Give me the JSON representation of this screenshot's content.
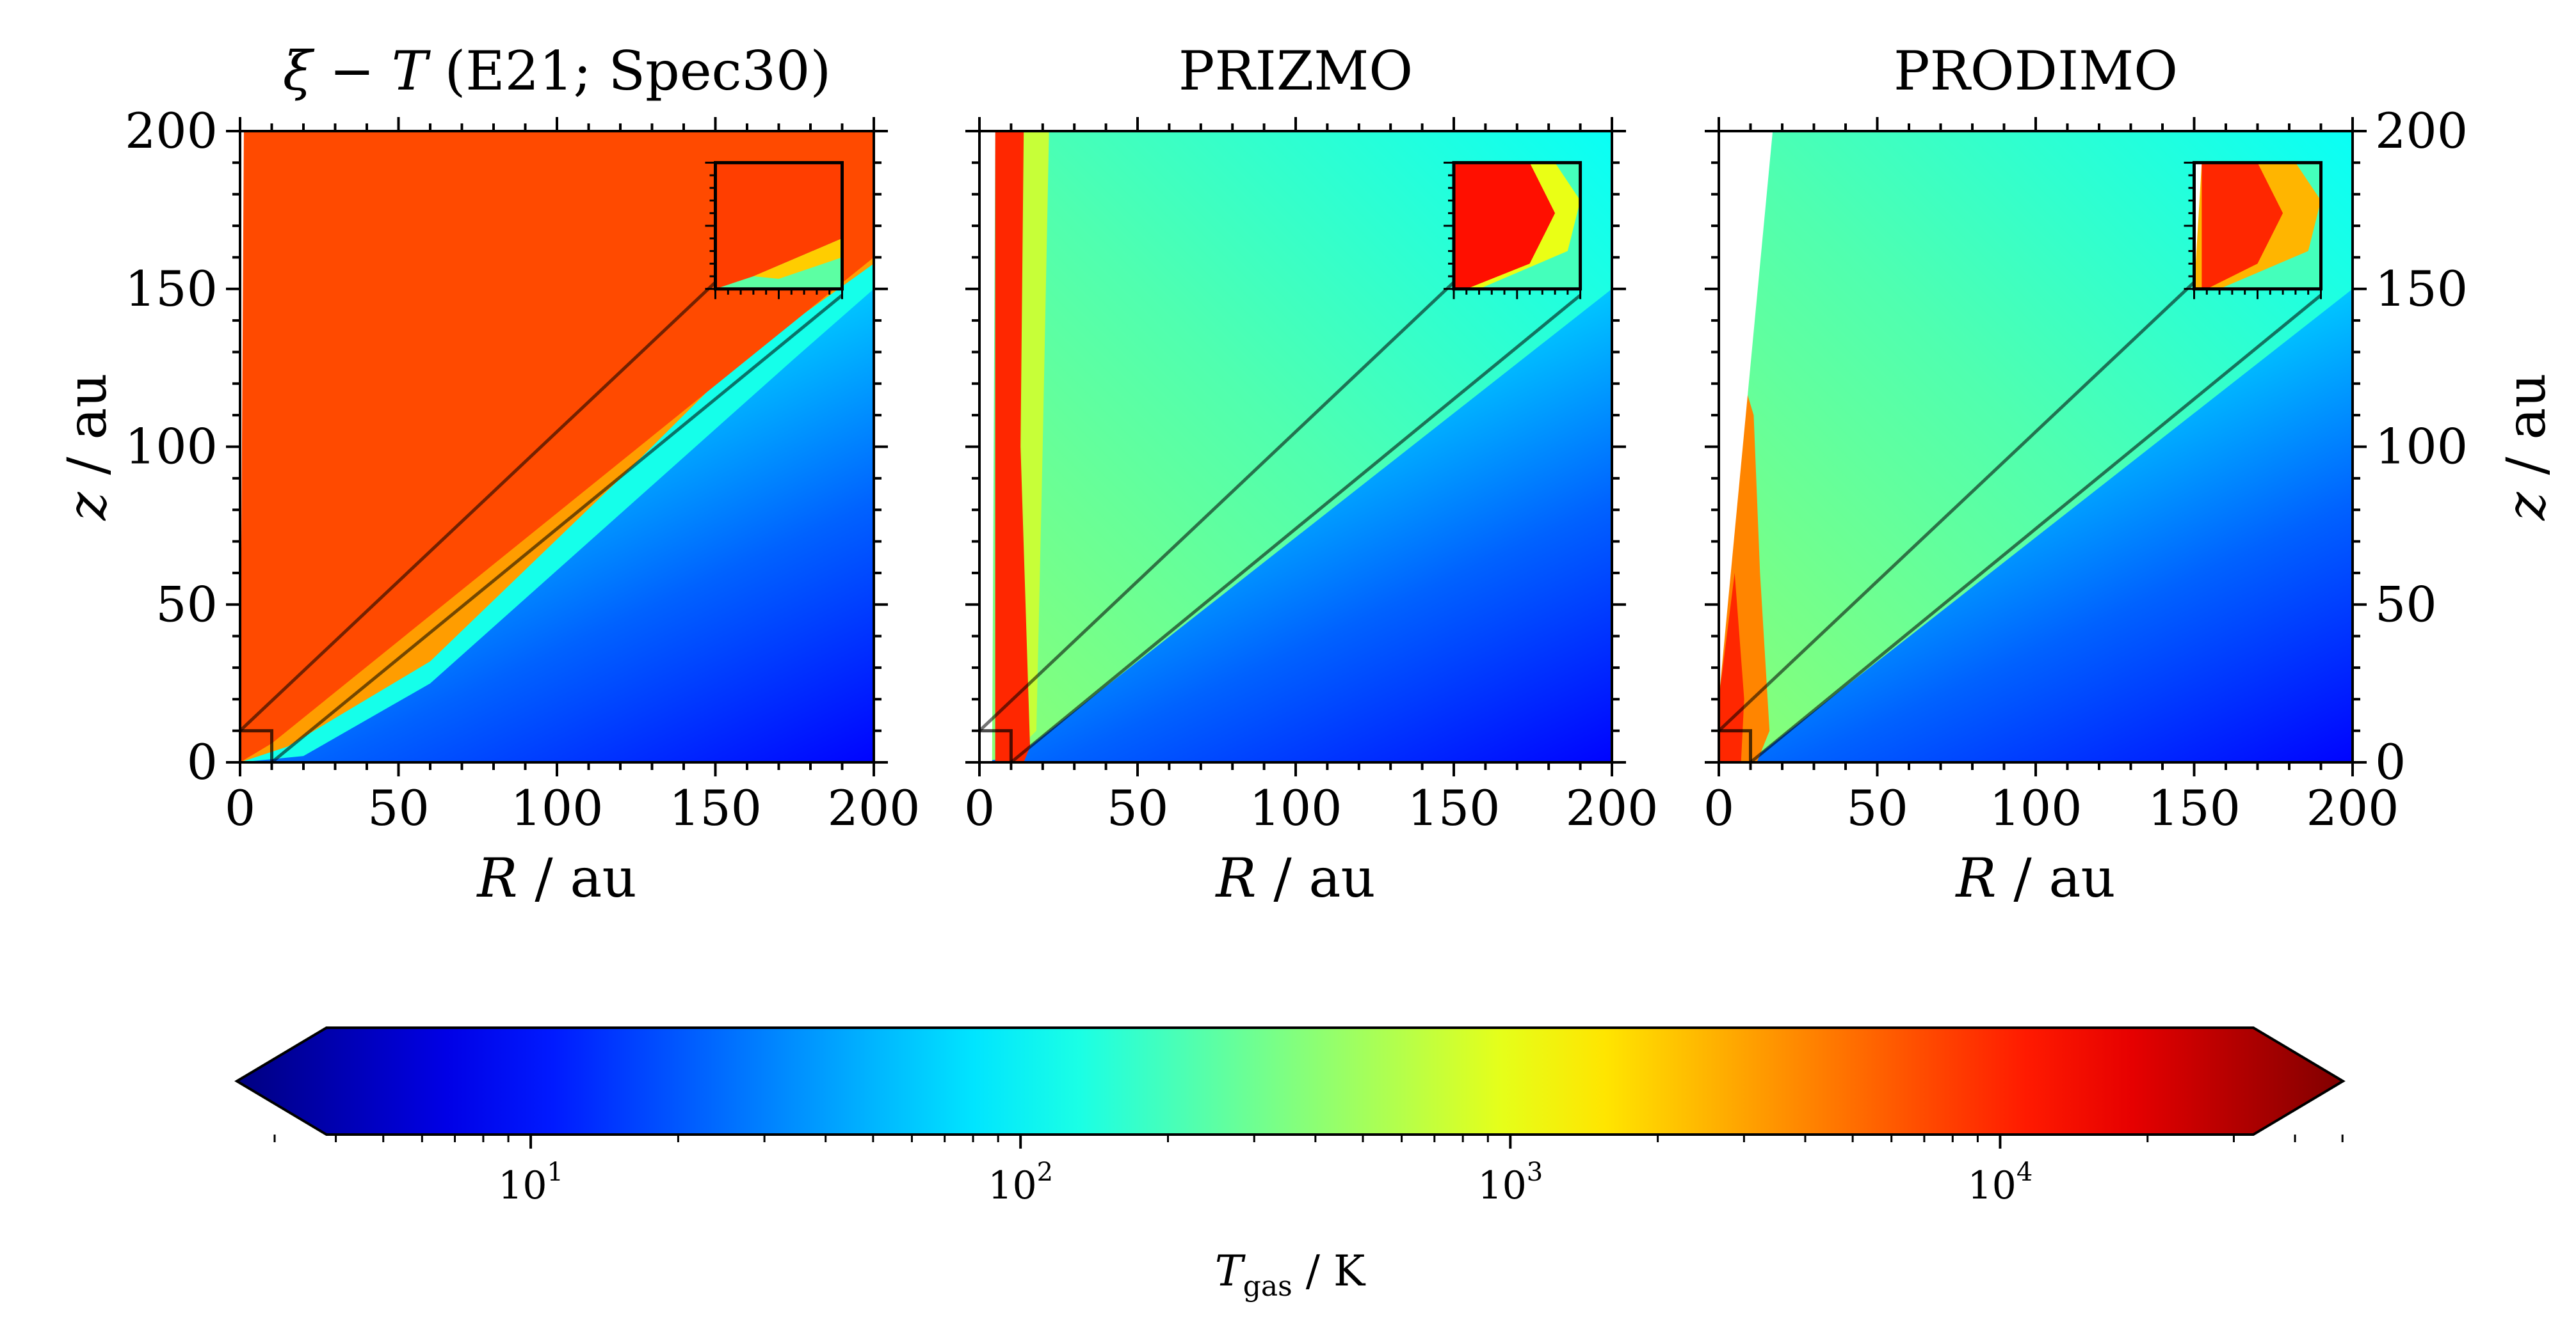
{
  "chart_data": {
    "type": "heatmap",
    "panels": [
      {
        "id": "xiT",
        "title_greek": "ξ",
        "title_minus": " − ",
        "title_var": "T",
        "title_rest": " (E21; Spec30)",
        "xlabel_var": "R",
        "xlabel_unit": " / au",
        "ylabel_var": "z",
        "ylabel_unit": " / au",
        "ylabel_side": "left",
        "xlim": [
          0,
          200
        ],
        "ylim": [
          0,
          200
        ],
        "xticks": [
          "0",
          "50",
          "100",
          "150",
          "200"
        ],
        "yticks": [
          "0",
          "50",
          "100",
          "150",
          "200"
        ],
        "hot_boundary_slope": 0.8,
        "hot_log10T": 3.85,
        "inset_zoom_box_au": [
          0,
          0,
          10,
          10
        ],
        "inset_location": "top-right"
      },
      {
        "id": "prizmo",
        "title": "PRIZMO",
        "xlabel_var": "R",
        "xlabel_unit": " / au",
        "xlim": [
          0,
          200
        ],
        "ylim": [
          0,
          200
        ],
        "xticks": [
          "0",
          "50",
          "100",
          "150",
          "200"
        ],
        "ylabel_side": "none",
        "hot_column_R_au": [
          5,
          14
        ],
        "hot_log10T": 4.0,
        "inset_zoom_box_au": [
          0,
          0,
          10,
          10
        ],
        "inset_location": "top-right"
      },
      {
        "id": "prodimo",
        "title": "PRODIMO",
        "xlabel_var": "R",
        "xlabel_unit": " / au",
        "ylabel_var": "z",
        "ylabel_unit": " / au",
        "ylabel_side": "right",
        "xlim": [
          0,
          200
        ],
        "ylim": [
          0,
          200
        ],
        "xticks": [
          "0",
          "50",
          "100",
          "150",
          "200"
        ],
        "yticks": [
          "0",
          "50",
          "100",
          "150",
          "200"
        ],
        "hot_wedge_log10T": 3.6,
        "inset_zoom_box_au": [
          0,
          0,
          10,
          10
        ],
        "inset_location": "top-right"
      }
    ],
    "wedge_lines_z_over_R": [
      1.0,
      0.74
    ],
    "colorbar": {
      "label_var": "T",
      "label_sub": "gas",
      "label_unit": " / K",
      "scale": "log",
      "range_log10": [
        0.4,
        4.7
      ],
      "ticks": [
        {
          "base": "10",
          "exp": "1",
          "log10": 1
        },
        {
          "base": "10",
          "exp": "2",
          "log10": 2
        },
        {
          "base": "10",
          "exp": "3",
          "log10": 3
        },
        {
          "base": "10",
          "exp": "4",
          "log10": 4
        }
      ],
      "extend": "both",
      "colormap": "jet"
    }
  }
}
